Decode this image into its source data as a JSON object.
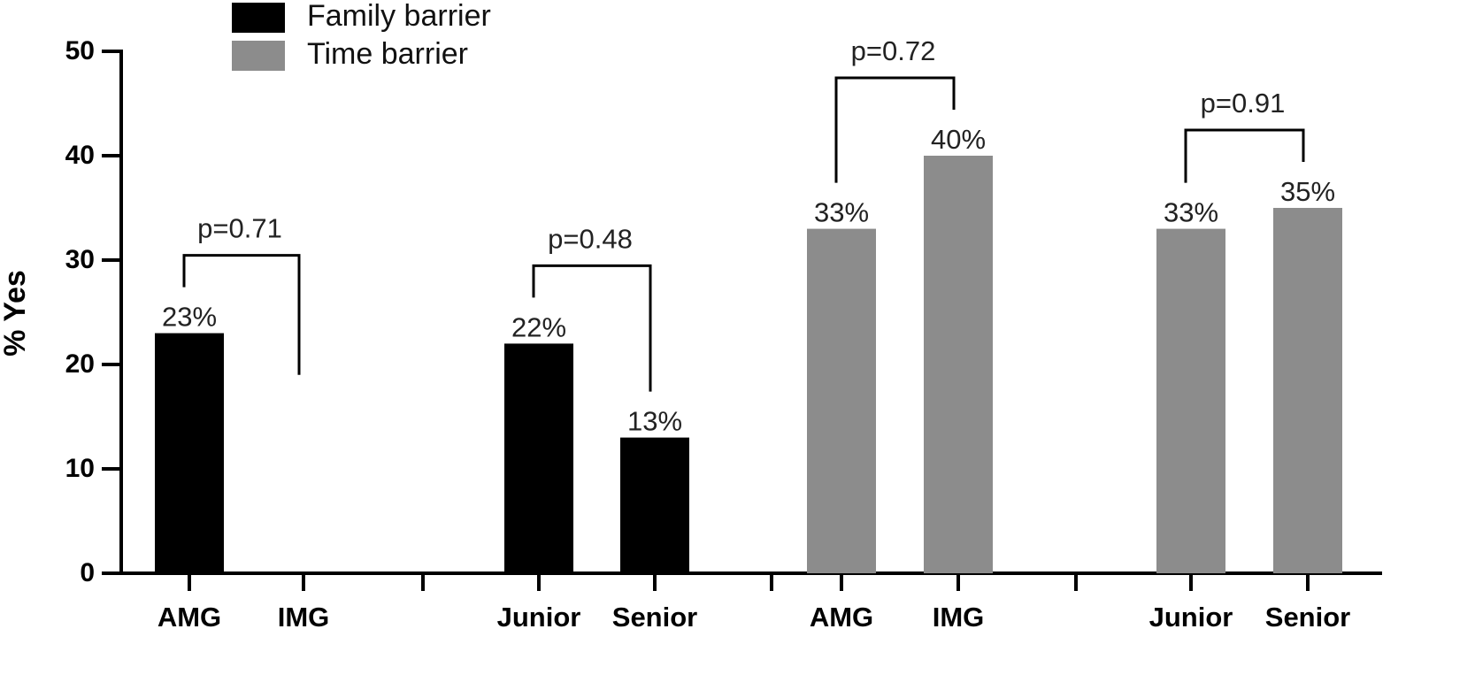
{
  "chart_data": {
    "type": "bar",
    "title": "",
    "xlabel": "",
    "ylabel": "% Yes",
    "ylim": [
      0,
      50
    ],
    "yticks": [
      0,
      10,
      20,
      30,
      40,
      50
    ],
    "grid": false,
    "legend_position": "top-left",
    "legend": [
      {
        "name": "Family barrier",
        "color": "#000000"
      },
      {
        "name": "Time barrier",
        "color": "#8c8c8c"
      }
    ],
    "groups": [
      {
        "series": "Family barrier",
        "bars": [
          {
            "category": "AMG",
            "value": 23,
            "label": "23%"
          },
          {
            "category": "IMG",
            "value": 0,
            "label": ""
          }
        ],
        "pvalue": "p=0.71"
      },
      {
        "series": "Family barrier",
        "bars": [
          {
            "category": "Junior",
            "value": 22,
            "label": "22%"
          },
          {
            "category": "Senior",
            "value": 13,
            "label": "13%"
          }
        ],
        "pvalue": "p=0.48"
      },
      {
        "series": "Time barrier",
        "bars": [
          {
            "category": "AMG",
            "value": 33,
            "label": "33%"
          },
          {
            "category": "IMG",
            "value": 40,
            "label": "40%"
          }
        ],
        "pvalue": "p=0.72"
      },
      {
        "series": "Time barrier",
        "bars": [
          {
            "category": "Junior",
            "value": 33,
            "label": "33%"
          },
          {
            "category": "Senior",
            "value": 35,
            "label": "35%"
          }
        ],
        "pvalue": "p=0.91"
      }
    ]
  }
}
